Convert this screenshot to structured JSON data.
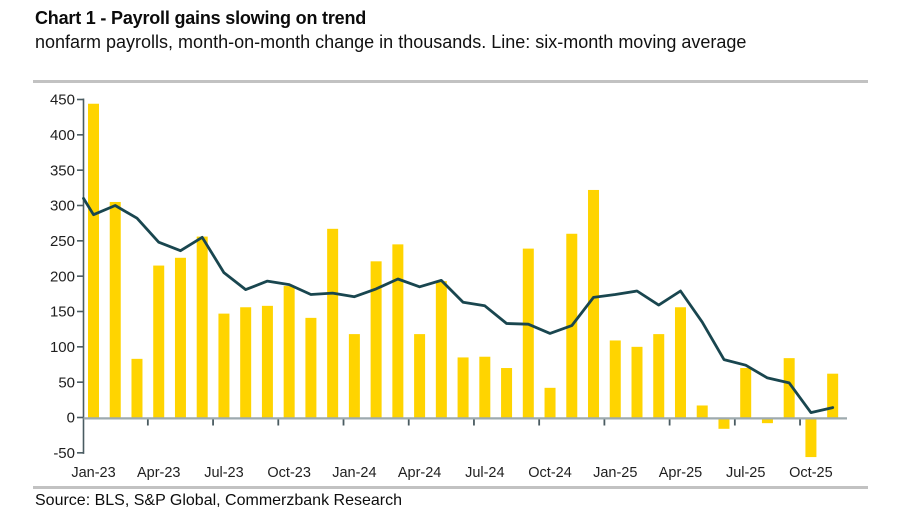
{
  "header": {
    "title": "Chart 1 - Payroll gains slowing on trend",
    "subtitle": "nonfarm payrolls, month-on-month change in thousands. Line: six-month moving average"
  },
  "footer": {
    "source": "Source: BLS, S&P Global, Commerzbank Research"
  },
  "colors": {
    "bar": "#FFD400",
    "line": "#19464F",
    "axis": "#4A5B61",
    "zero_line": "#9EAAAE",
    "separator": "#C2C2C2",
    "text": "#1F1F1F"
  },
  "chart_data": {
    "type": "bar",
    "title": "Chart 1 - Payroll gains slowing on trend",
    "subtitle": "nonfarm payrolls, month-on-month change in thousands. Line: six-month moving average",
    "source": "Source: BLS, S&P Global, Commerzbank Research",
    "categories": [
      "Jan-23",
      "Feb-23",
      "Mar-23",
      "Apr-23",
      "May-23",
      "Jun-23",
      "Jul-23",
      "Aug-23",
      "Sep-23",
      "Oct-23",
      "Nov-23",
      "Dec-23",
      "Jan-24",
      "Feb-24",
      "Mar-24",
      "Apr-24",
      "May-24",
      "Jun-24",
      "Jul-24",
      "Aug-24",
      "Sep-24",
      "Oct-24",
      "Nov-24",
      "Dec-24",
      "Jan-25",
      "Feb-25",
      "Mar-25",
      "Apr-25",
      "May-25",
      "Jun-25",
      "Jul-25",
      "Aug-25",
      "Sep-25",
      "Oct-25",
      "Nov-25"
    ],
    "series": [
      {
        "name": "nonfarm payrolls month-on-month change (thousands)",
        "type": "bar",
        "color": "#FFD400",
        "values": [
          444,
          305,
          83,
          215,
          226,
          256,
          147,
          156,
          158,
          186,
          141,
          267,
          118,
          221,
          245,
          118,
          193,
          85,
          86,
          70,
          239,
          42,
          260,
          322,
          109,
          100,
          118,
          156,
          17,
          -16,
          70,
          -8,
          84,
          -56,
          62
        ]
      },
      {
        "name": "six-month moving average",
        "type": "line",
        "color": "#19464F",
        "lead_in_value_at_axis": 310,
        "values": [
          287,
          300,
          282,
          248,
          236,
          255,
          205,
          181,
          193,
          188,
          174,
          176,
          171,
          182,
          196,
          185,
          194,
          163,
          158,
          133,
          132,
          119,
          130,
          170,
          174,
          179,
          159,
          179,
          135,
          82,
          74,
          56,
          49,
          7,
          14
        ]
      }
    ],
    "x_tick_labels": [
      "Jan-23",
      "Apr-23",
      "Jul-23",
      "Oct-23",
      "Jan-24",
      "Apr-24",
      "Jul-24",
      "Oct-24",
      "Jan-25",
      "Apr-25",
      "Jul-25",
      "Oct-25"
    ],
    "y_ticks": [
      -50,
      0,
      50,
      100,
      150,
      200,
      250,
      300,
      350,
      400,
      450
    ],
    "ylim": [
      -50,
      450
    ],
    "xlabel": "",
    "ylabel": "",
    "grid": "off",
    "legend": "none"
  }
}
